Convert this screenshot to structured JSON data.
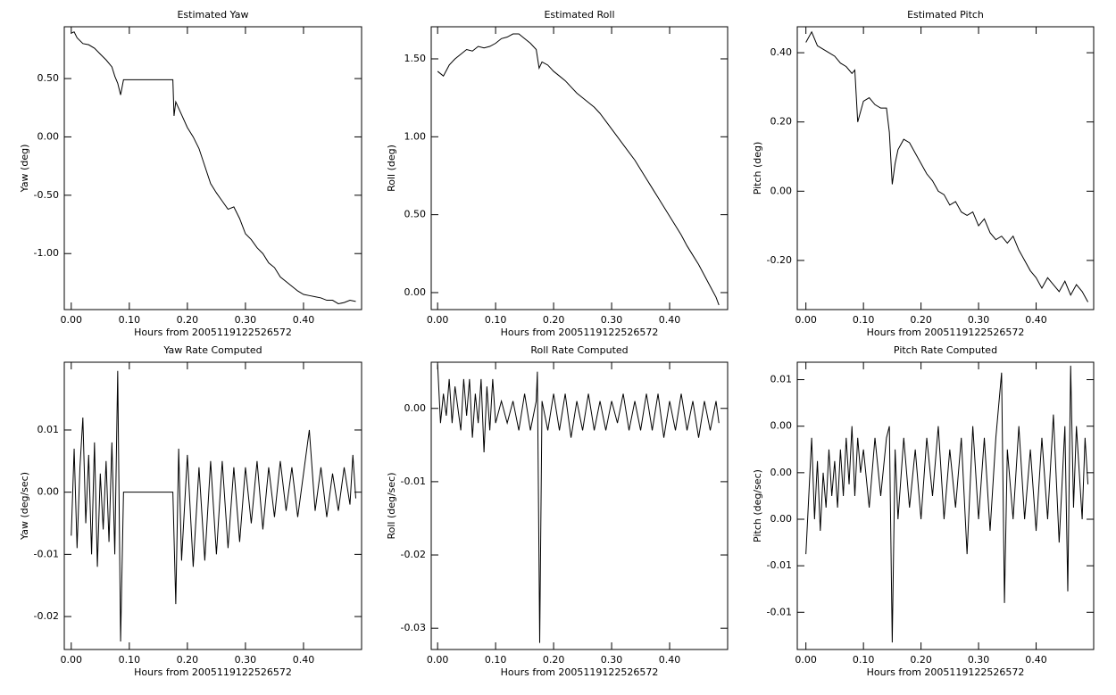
{
  "chart_data": [
    {
      "type": "line",
      "title": "Estimated Yaw",
      "x_label": "Hours from 2005119122526572",
      "y_label": "Yaw (deg)",
      "color": "#000000",
      "xlim": [
        -0.012,
        0.5
      ],
      "ylim": [
        -1.48,
        0.944
      ],
      "xticks": [
        {
          "value": 0,
          "label": "0.00"
        },
        {
          "value": 0.1,
          "label": "0.10"
        },
        {
          "value": 0.2,
          "label": "0.20"
        },
        {
          "value": 0.3,
          "label": "0.30"
        },
        {
          "value": 0.4,
          "label": "0.40"
        }
      ],
      "yticks": [
        {
          "value": -1,
          "label": "-1.00"
        },
        {
          "value": -0.5,
          "label": "-0.50"
        },
        {
          "value": 0,
          "label": "0.00"
        },
        {
          "value": 0.5,
          "label": "0.50"
        }
      ],
      "x": [
        0,
        0.005,
        0.01,
        0.02,
        0.03,
        0.04,
        0.05,
        0.06,
        0.07,
        0.075,
        0.08,
        0.085,
        0.09,
        0.175,
        0.177,
        0.18,
        0.19,
        0.2,
        0.21,
        0.22,
        0.23,
        0.24,
        0.25,
        0.26,
        0.27,
        0.28,
        0.29,
        0.3,
        0.31,
        0.32,
        0.33,
        0.34,
        0.35,
        0.36,
        0.37,
        0.38,
        0.39,
        0.4,
        0.41,
        0.42,
        0.43,
        0.44,
        0.45,
        0.46,
        0.47,
        0.48,
        0.49
      ],
      "values": [
        0.89,
        0.9,
        0.85,
        0.8,
        0.79,
        0.76,
        0.71,
        0.66,
        0.6,
        0.52,
        0.46,
        0.36,
        0.49,
        0.49,
        0.18,
        0.3,
        0.19,
        0.08,
        0.0,
        -0.1,
        -0.25,
        -0.4,
        -0.48,
        -0.55,
        -0.62,
        -0.6,
        -0.7,
        -0.83,
        -0.88,
        -0.95,
        -1.0,
        -1.08,
        -1.12,
        -1.2,
        -1.24,
        -1.28,
        -1.32,
        -1.35,
        -1.36,
        -1.37,
        -1.38,
        -1.4,
        -1.4,
        -1.43,
        -1.42,
        -1.4,
        -1.41
      ]
    },
    {
      "type": "line",
      "title": "Estimated Roll",
      "x_label": "Hours from 2005119122526572",
      "y_label": "Roll (deg)",
      "color": "#000000",
      "xlim": [
        -0.011,
        0.5
      ],
      "ylim": [
        -0.109,
        1.706
      ],
      "xticks": [
        {
          "value": 0,
          "label": "0.00"
        },
        {
          "value": 0.1,
          "label": "0.10"
        },
        {
          "value": 0.2,
          "label": "0.20"
        },
        {
          "value": 0.3,
          "label": "0.30"
        },
        {
          "value": 0.4,
          "label": "0.40"
        }
      ],
      "yticks": [
        {
          "value": 0,
          "label": "0.00"
        },
        {
          "value": 0.5,
          "label": "0.50"
        },
        {
          "value": 1,
          "label": "1.00"
        },
        {
          "value": 1.5,
          "label": "1.50"
        }
      ],
      "x": [
        0,
        0.01,
        0.02,
        0.03,
        0.04,
        0.05,
        0.06,
        0.07,
        0.08,
        0.09,
        0.1,
        0.11,
        0.12,
        0.13,
        0.14,
        0.15,
        0.16,
        0.17,
        0.175,
        0.18,
        0.19,
        0.2,
        0.21,
        0.22,
        0.23,
        0.24,
        0.25,
        0.26,
        0.27,
        0.28,
        0.29,
        0.3,
        0.31,
        0.32,
        0.33,
        0.34,
        0.35,
        0.36,
        0.37,
        0.38,
        0.39,
        0.4,
        0.41,
        0.42,
        0.43,
        0.44,
        0.45,
        0.46,
        0.47,
        0.48,
        0.485
      ],
      "values": [
        1.42,
        1.39,
        1.46,
        1.5,
        1.53,
        1.56,
        1.55,
        1.58,
        1.57,
        1.58,
        1.6,
        1.63,
        1.64,
        1.66,
        1.66,
        1.63,
        1.6,
        1.56,
        1.44,
        1.48,
        1.46,
        1.42,
        1.39,
        1.36,
        1.32,
        1.28,
        1.25,
        1.22,
        1.19,
        1.15,
        1.1,
        1.05,
        1.0,
        0.95,
        0.9,
        0.85,
        0.79,
        0.73,
        0.67,
        0.61,
        0.55,
        0.49,
        0.43,
        0.37,
        0.3,
        0.24,
        0.18,
        0.11,
        0.04,
        -0.03,
        -0.08
      ]
    },
    {
      "type": "line",
      "title": "Estimated Pitch",
      "x_label": "Hours from 2005119122526572",
      "y_label": "Pitch (deg)",
      "color": "#000000",
      "xlim": [
        -0.015,
        0.5
      ],
      "ylim": [
        -0.342,
        0.475
      ],
      "xticks": [
        {
          "value": 0,
          "label": "0.00"
        },
        {
          "value": 0.1,
          "label": "0.10"
        },
        {
          "value": 0.2,
          "label": "0.20"
        },
        {
          "value": 0.3,
          "label": "0.30"
        },
        {
          "value": 0.4,
          "label": "0.40"
        }
      ],
      "yticks": [
        {
          "value": -0.2,
          "label": "-0.20"
        },
        {
          "value": 0,
          "label": "0.00"
        },
        {
          "value": 0.2,
          "label": "0.20"
        },
        {
          "value": 0.4,
          "label": "0.40"
        }
      ],
      "x": [
        0,
        0.01,
        0.02,
        0.03,
        0.04,
        0.05,
        0.06,
        0.07,
        0.08,
        0.085,
        0.09,
        0.1,
        0.11,
        0.12,
        0.13,
        0.14,
        0.145,
        0.15,
        0.155,
        0.16,
        0.17,
        0.18,
        0.19,
        0.2,
        0.21,
        0.22,
        0.23,
        0.24,
        0.25,
        0.26,
        0.27,
        0.28,
        0.29,
        0.3,
        0.31,
        0.32,
        0.33,
        0.34,
        0.35,
        0.36,
        0.37,
        0.38,
        0.39,
        0.4,
        0.41,
        0.42,
        0.43,
        0.44,
        0.45,
        0.46,
        0.47,
        0.48,
        0.49
      ],
      "values": [
        0.43,
        0.46,
        0.42,
        0.41,
        0.4,
        0.39,
        0.37,
        0.36,
        0.34,
        0.35,
        0.2,
        0.26,
        0.27,
        0.25,
        0.24,
        0.24,
        0.17,
        0.02,
        0.08,
        0.12,
        0.15,
        0.14,
        0.11,
        0.08,
        0.05,
        0.03,
        0.0,
        -0.01,
        -0.04,
        -0.03,
        -0.06,
        -0.07,
        -0.06,
        -0.1,
        -0.08,
        -0.12,
        -0.14,
        -0.13,
        -0.15,
        -0.13,
        -0.17,
        -0.2,
        -0.23,
        -0.25,
        -0.28,
        -0.25,
        -0.27,
        -0.29,
        -0.26,
        -0.3,
        -0.27,
        -0.29,
        -0.32
      ]
    },
    {
      "type": "line",
      "title": "Yaw Rate Computed",
      "x_label": "Hours from 2005119122526572",
      "y_label": "Yaw (deg/sec)",
      "color": "#000000",
      "xlim": [
        -0.012,
        0.5
      ],
      "ylim": [
        -0.0253,
        0.0209
      ],
      "xticks": [
        {
          "value": 0,
          "label": "0.00"
        },
        {
          "value": 0.1,
          "label": "0.10"
        },
        {
          "value": 0.2,
          "label": "0.20"
        },
        {
          "value": 0.3,
          "label": "0.30"
        },
        {
          "value": 0.4,
          "label": "0.40"
        }
      ],
      "yticks": [
        {
          "value": -0.02,
          "label": "-0.02"
        },
        {
          "value": -0.01,
          "label": "-0.01"
        },
        {
          "value": 0,
          "label": "0.00"
        },
        {
          "value": 0.01,
          "label": "0.01"
        }
      ],
      "x": [
        0,
        0.005,
        0.01,
        0.015,
        0.02,
        0.025,
        0.03,
        0.035,
        0.04,
        0.045,
        0.05,
        0.055,
        0.06,
        0.065,
        0.07,
        0.075,
        0.08,
        0.085,
        0.09,
        0.175,
        0.18,
        0.185,
        0.19,
        0.2,
        0.21,
        0.22,
        0.23,
        0.24,
        0.25,
        0.26,
        0.27,
        0.28,
        0.29,
        0.3,
        0.31,
        0.32,
        0.33,
        0.34,
        0.35,
        0.36,
        0.37,
        0.38,
        0.39,
        0.4,
        0.41,
        0.42,
        0.43,
        0.44,
        0.45,
        0.46,
        0.47,
        0.48,
        0.485,
        0.49
      ],
      "values": [
        -0.007,
        0.007,
        -0.009,
        0.004,
        0.012,
        -0.005,
        0.006,
        -0.01,
        0.008,
        -0.012,
        0.003,
        -0.006,
        0.005,
        -0.008,
        0.008,
        -0.01,
        0.0195,
        -0.024,
        0.0,
        0.0,
        -0.018,
        0.007,
        -0.011,
        0.006,
        -0.012,
        0.004,
        -0.011,
        0.005,
        -0.01,
        0.005,
        -0.009,
        0.004,
        -0.008,
        0.004,
        -0.005,
        0.005,
        -0.006,
        0.004,
        -0.004,
        0.005,
        -0.003,
        0.004,
        -0.004,
        0.003,
        0.01,
        -0.003,
        0.004,
        -0.004,
        0.003,
        -0.003,
        0.004,
        -0.002,
        0.006,
        -0.001
      ]
    },
    {
      "type": "line",
      "title": "Roll Rate Computed",
      "x_label": "Hours from 2005119122526572",
      "y_label": "Roll (deg/sec)",
      "color": "#000000",
      "xlim": [
        -0.011,
        0.5
      ],
      "ylim": [
        -0.0329,
        0.0063
      ],
      "xticks": [
        {
          "value": 0,
          "label": "0.00"
        },
        {
          "value": 0.1,
          "label": "0.10"
        },
        {
          "value": 0.2,
          "label": "0.20"
        },
        {
          "value": 0.3,
          "label": "0.30"
        },
        {
          "value": 0.4,
          "label": "0.40"
        }
      ],
      "yticks": [
        {
          "value": -0.03,
          "label": "-0.03"
        },
        {
          "value": -0.02,
          "label": "-0.02"
        },
        {
          "value": -0.01,
          "label": "-0.01"
        },
        {
          "value": 0,
          "label": "0.00"
        }
      ],
      "x": [
        0,
        0.005,
        0.01,
        0.015,
        0.02,
        0.025,
        0.03,
        0.035,
        0.04,
        0.045,
        0.05,
        0.055,
        0.06,
        0.065,
        0.07,
        0.075,
        0.08,
        0.085,
        0.09,
        0.095,
        0.1,
        0.11,
        0.12,
        0.13,
        0.14,
        0.15,
        0.16,
        0.17,
        0.172,
        0.176,
        0.18,
        0.19,
        0.2,
        0.21,
        0.22,
        0.23,
        0.24,
        0.25,
        0.26,
        0.27,
        0.28,
        0.29,
        0.3,
        0.31,
        0.32,
        0.33,
        0.34,
        0.35,
        0.36,
        0.37,
        0.38,
        0.39,
        0.4,
        0.41,
        0.42,
        0.43,
        0.44,
        0.45,
        0.46,
        0.47,
        0.48,
        0.485
      ],
      "values": [
        0.006,
        -0.002,
        0.002,
        -0.001,
        0.004,
        -0.002,
        0.003,
        0.0,
        -0.003,
        0.004,
        -0.001,
        0.004,
        -0.004,
        0.002,
        -0.002,
        0.004,
        -0.006,
        0.003,
        -0.003,
        0.004,
        -0.002,
        0.001,
        -0.002,
        0.001,
        -0.003,
        0.002,
        -0.003,
        0.001,
        0.005,
        -0.032,
        0.001,
        -0.003,
        0.002,
        -0.003,
        0.002,
        -0.004,
        0.001,
        -0.003,
        0.002,
        -0.003,
        0.001,
        -0.003,
        0.001,
        -0.002,
        0.002,
        -0.003,
        0.001,
        -0.003,
        0.002,
        -0.003,
        0.002,
        -0.004,
        0.001,
        -0.003,
        0.002,
        -0.003,
        0.001,
        -0.004,
        0.001,
        -0.003,
        0.001,
        -0.002
      ]
    },
    {
      "type": "line",
      "title": "Pitch Rate Computed",
      "x_label": "Hours from 2005119122526572",
      "y_label": "Pitch (deg/sec)",
      "color": "#000000",
      "xlim": [
        -0.015,
        0.5
      ],
      "ylim": [
        -0.0152,
        0.0095
      ],
      "xticks": [
        {
          "value": 0,
          "label": "0.00"
        },
        {
          "value": 0.1,
          "label": "0.10"
        },
        {
          "value": 0.2,
          "label": "0.20"
        },
        {
          "value": 0.3,
          "label": "0.30"
        },
        {
          "value": 0.4,
          "label": "0.40"
        }
      ],
      "yticks": [
        {
          "value": -0.012,
          "label": "-0.01"
        },
        {
          "value": -0.008,
          "label": "-0.01"
        },
        {
          "value": -0.004,
          "label": "0.00"
        },
        {
          "value": 0,
          "label": "0.00"
        },
        {
          "value": 0.004,
          "label": "0.00"
        },
        {
          "value": 0.008,
          "label": "0.01"
        }
      ],
      "x": [
        0,
        0.005,
        0.01,
        0.015,
        0.02,
        0.025,
        0.03,
        0.035,
        0.04,
        0.045,
        0.05,
        0.055,
        0.06,
        0.065,
        0.07,
        0.075,
        0.08,
        0.085,
        0.09,
        0.095,
        0.1,
        0.11,
        0.12,
        0.13,
        0.14,
        0.145,
        0.15,
        0.155,
        0.16,
        0.17,
        0.18,
        0.19,
        0.2,
        0.21,
        0.22,
        0.23,
        0.24,
        0.25,
        0.26,
        0.27,
        0.28,
        0.29,
        0.3,
        0.31,
        0.32,
        0.33,
        0.34,
        0.345,
        0.35,
        0.36,
        0.37,
        0.38,
        0.39,
        0.4,
        0.41,
        0.42,
        0.43,
        0.44,
        0.45,
        0.455,
        0.46,
        0.465,
        0.47,
        0.48,
        0.485,
        0.49
      ],
      "values": [
        -0.007,
        -0.002,
        0.003,
        -0.004,
        0.001,
        -0.005,
        0.0,
        -0.003,
        0.002,
        -0.002,
        0.001,
        -0.003,
        0.002,
        -0.002,
        0.003,
        -0.001,
        0.004,
        -0.002,
        0.003,
        0.0,
        0.002,
        -0.003,
        0.003,
        -0.002,
        0.003,
        0.004,
        -0.0146,
        0.002,
        -0.004,
        0.003,
        -0.003,
        0.002,
        -0.004,
        0.003,
        -0.002,
        0.004,
        -0.004,
        0.002,
        -0.003,
        0.003,
        -0.007,
        0.004,
        -0.004,
        0.003,
        -0.005,
        0.003,
        0.0086,
        -0.0112,
        0.002,
        -0.004,
        0.004,
        -0.004,
        0.002,
        -0.005,
        0.003,
        -0.004,
        0.005,
        -0.006,
        0.004,
        -0.0102,
        0.0092,
        -0.003,
        0.004,
        -0.004,
        0.003,
        -0.001
      ]
    }
  ]
}
